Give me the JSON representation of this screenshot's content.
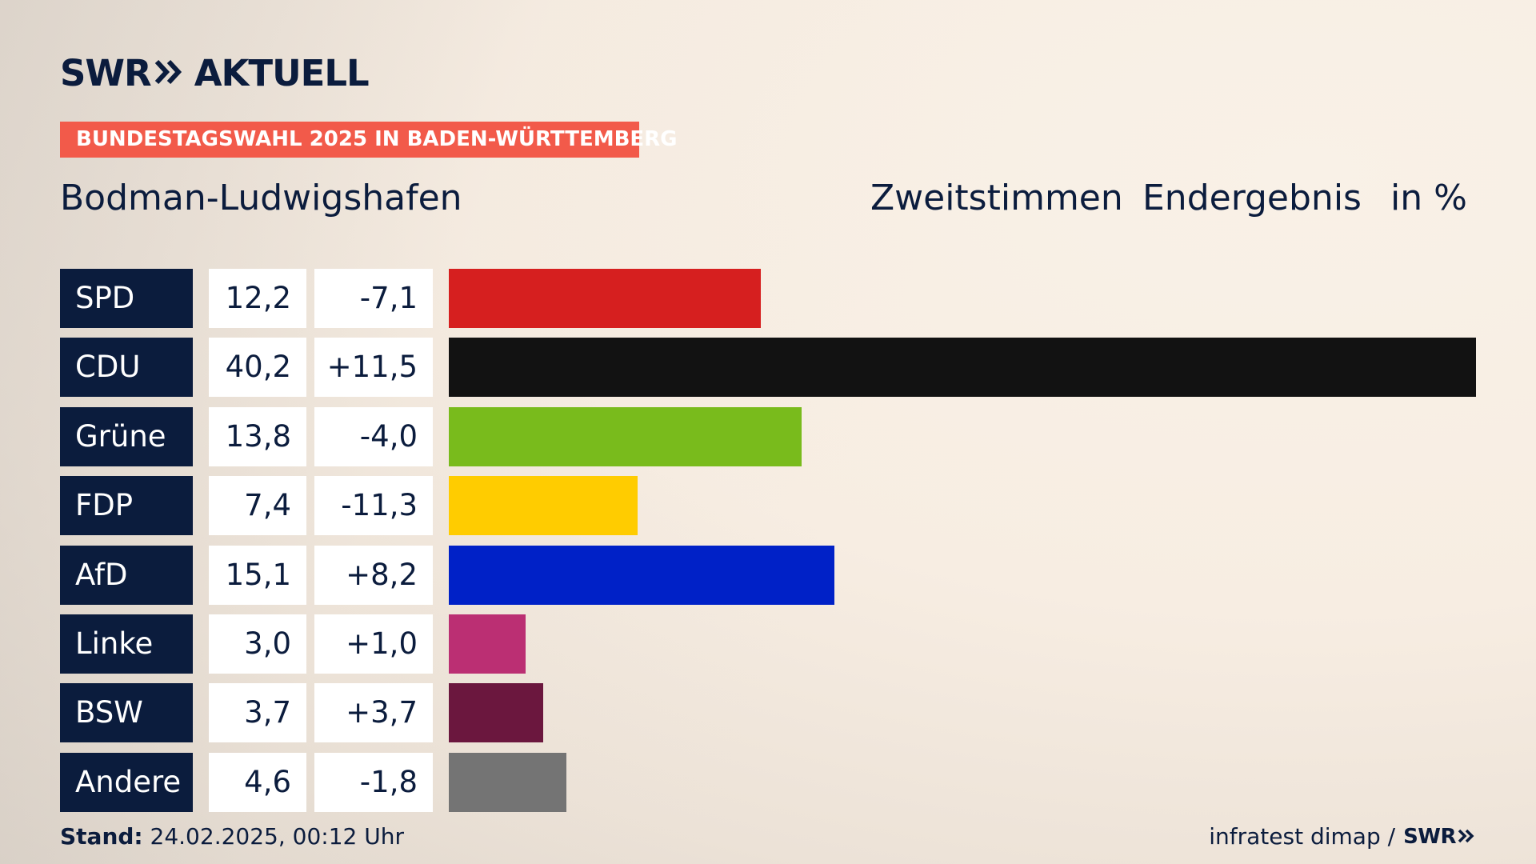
{
  "brand": {
    "logo_left": "SWR",
    "logo_right": "AKTUELL",
    "chevrons_icon": "double-chevron-right-icon"
  },
  "banner": {
    "text": "BUNDESTAGSWAHL 2025 IN BADEN-WÜRTTEMBERG",
    "color": "#f25a4a"
  },
  "header": {
    "location": "Bodman-Ludwigshafen",
    "votes_type": "Zweitstimmen",
    "status": "Endergebnis",
    "unit": "in %"
  },
  "chart_data": {
    "type": "bar",
    "orientation": "horizontal",
    "categories": [
      "SPD",
      "CDU",
      "Grüne",
      "FDP",
      "AfD",
      "Linke",
      "BSW",
      "Andere"
    ],
    "values": [
      12.2,
      40.2,
      13.8,
      7.4,
      15.1,
      3.0,
      3.7,
      4.6
    ],
    "value_labels": [
      "12,2",
      "40,2",
      "13,8",
      "7,4",
      "15,1",
      "3,0",
      "3,7",
      "4,6"
    ],
    "diff_labels": [
      "-7,1",
      "+11,5",
      "-4,0",
      "-11,3",
      "+8,2",
      "+1,0",
      "+3,7",
      "-1,8"
    ],
    "diffs": [
      -7.1,
      11.5,
      -4.0,
      -11.3,
      8.2,
      1.0,
      3.7,
      -1.8
    ],
    "colors": [
      "#d61f1f",
      "#121212",
      "#79bb1c",
      "#ffcc00",
      "#0021c7",
      "#bb2f73",
      "#6b173e",
      "#747474"
    ],
    "xlim": [
      0,
      40.2
    ]
  },
  "footer": {
    "stand_label": "Stand:",
    "stand_value": "24.02.2025, 00:12 Uhr",
    "source": "infratest dimap /",
    "source_brand": "SWR"
  }
}
